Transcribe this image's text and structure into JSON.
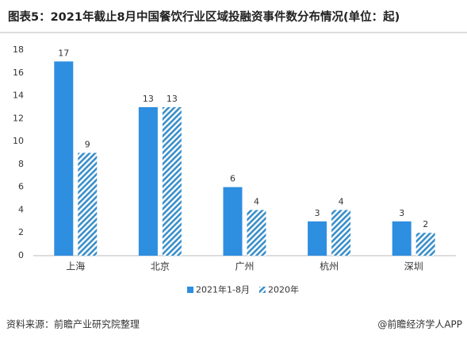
{
  "chart_data": {
    "type": "bar",
    "title": "图表5：2021年截止8月中国餐饮行业区域投融资事件数分布情况(单位：起)",
    "categories": [
      "上海",
      "北京",
      "广州",
      "杭州",
      "深圳"
    ],
    "series": [
      {
        "name": "2021年1-8月",
        "color": "#2e8ee0",
        "values": [
          17,
          13,
          6,
          3,
          3
        ]
      },
      {
        "name": "2020年",
        "color": "#3a8fc9",
        "pattern": "hatch",
        "values": [
          9,
          13,
          4,
          4,
          2
        ]
      }
    ],
    "ylim": [
      0,
      18
    ],
    "yticks": [
      0,
      2,
      4,
      6,
      8,
      10,
      12,
      14,
      16,
      18
    ],
    "grid": false,
    "source": "资料来源：前瞻产业研究院整理",
    "credit": "@前瞻经济学人APP"
  }
}
